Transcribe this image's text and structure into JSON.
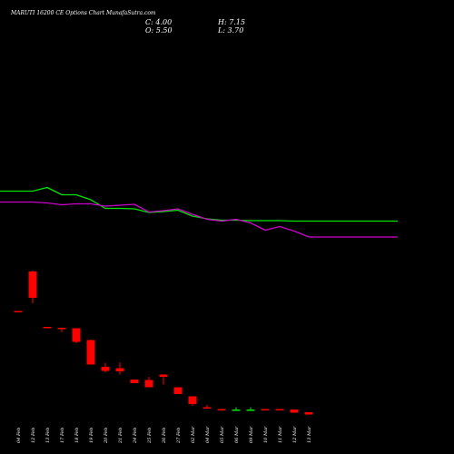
{
  "header": {
    "title": "MARUTI 16200  CE Options  Chart MunafaSutra.com",
    "close": "C: 4.00",
    "open": "O: 5.50",
    "high": "H: 7.15",
    "low": "L: 3.70"
  },
  "chart_data": {
    "type": "candlestick",
    "title": "MARUTI 16200  CE Options  Chart MunafaSutra.com",
    "categories": [
      "04 Feb",
      "12 Feb",
      "13 Feb",
      "17 Feb",
      "18 Feb",
      "19 Feb",
      "20 Feb",
      "21 Feb",
      "24 Feb",
      "25 Feb",
      "26 Feb",
      "27 Feb",
      "02 Mar",
      "04 Mar",
      "05 Mar",
      "06 Mar",
      "09 Mar",
      "10 Mar",
      "11 Mar",
      "12 Mar",
      "13 Mar"
    ],
    "candles": [
      {
        "open": 133,
        "close": 130,
        "high": 133,
        "low": 130
      },
      {
        "open": 220,
        "close": 162,
        "high": 222,
        "low": 150
      },
      {
        "open": 98,
        "close": 97,
        "high": 98,
        "low": 97
      },
      {
        "open": 96,
        "close": 94,
        "high": 96,
        "low": 86
      },
      {
        "open": 95,
        "close": 65,
        "high": 95,
        "low": 62
      },
      {
        "open": 69,
        "close": 15,
        "high": 70,
        "low": 15
      },
      {
        "open": 10,
        "close": 1,
        "high": 19,
        "low": -2
      },
      {
        "open": 7,
        "close": 0,
        "high": 20,
        "low": -7
      },
      {
        "open": -18,
        "close": -26,
        "high": -18,
        "low": -26
      },
      {
        "open": -19,
        "close": -35,
        "high": -12,
        "low": -35
      },
      {
        "open": -7,
        "close": -12,
        "high": -7,
        "low": -29
      },
      {
        "open": -35,
        "close": -50,
        "high": -35,
        "low": -50
      },
      {
        "open": -55,
        "close": -72,
        "high": -55,
        "low": -76
      },
      {
        "open": -79,
        "close": -82,
        "high": -74,
        "low": -82
      },
      {
        "open": -83,
        "close": -86,
        "high": -83,
        "low": -87
      },
      {
        "open": -86,
        "close": -84,
        "high": -79,
        "low": -86
      },
      {
        "open": -86,
        "close": -84,
        "high": -79,
        "low": -86
      },
      {
        "open": -83,
        "close": -85,
        "high": -83,
        "low": -85
      },
      {
        "open": -83,
        "close": -85,
        "high": -83,
        "low": -85
      },
      {
        "open": -84,
        "close": -91,
        "high": -84,
        "low": -91
      },
      {
        "open": -90,
        "close": -95,
        "high": -90,
        "low": -95
      }
    ],
    "overlay_lines": [
      {
        "color": "#00e600",
        "values": [
          397,
          397,
          405,
          389,
          389,
          378,
          359,
          359,
          358,
          350,
          352,
          355,
          342,
          336,
          333,
          333,
          332,
          332,
          332,
          331,
          331
        ]
      },
      {
        "color": "#cc00cc",
        "values": [
          373,
          373,
          371,
          367,
          369,
          369,
          364,
          366,
          368,
          351,
          354,
          358,
          346,
          335,
          331,
          335,
          327,
          311,
          319,
          309,
          296
        ]
      }
    ],
    "colors": {
      "up": "#00e600",
      "down": "#ff0000",
      "background": "#000000"
    }
  }
}
